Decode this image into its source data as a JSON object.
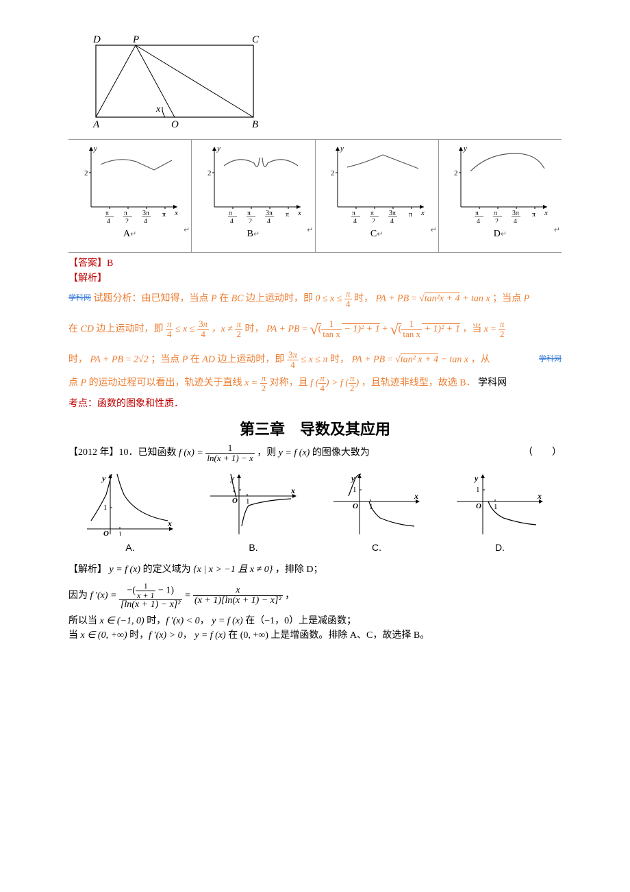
{
  "rect_fig": {
    "labels": {
      "D": "D",
      "P": "P",
      "C": "C",
      "A": "A",
      "O": "O",
      "B": "B",
      "x": "x"
    }
  },
  "top_charts": {
    "xticks": [
      "π/4",
      "π/2",
      "3π/4",
      "π"
    ],
    "ytick": "2",
    "y_label": "y",
    "x_label": "x",
    "items": [
      {
        "label": "A",
        "paths": [
          "M 14 20 Q 40 8 66 16 L 92 28 L 118 14"
        ]
      },
      {
        "label": "B",
        "paths": [
          "M 14 22 Q 36 6 58 18 Q 64 32 66 10",
          "M 70 10 Q 72 32 78 18 Q 100 6 122 22"
        ]
      },
      {
        "label": "C",
        "paths": [
          "M 14 24 Q 40 18 66 6 L 118 26"
        ]
      },
      {
        "label": "D",
        "paths": [
          "M 14 30 Q 40 4 80 4 Q 110 4 122 26"
        ]
      }
    ]
  },
  "answer_block": {
    "answer_label": "【答案】",
    "answer_value": "B",
    "analysis_label": "【解析】",
    "line1_prefix": "试题分析：由已知得，当点 ",
    "line1_mid": " 在 ",
    "line1_seg": "BC",
    "line1_after": " 边上运动时，即 ",
    "line1_cond": "0 ≤ x ≤ ",
    "line1_end": " 时，",
    "expr_papb": "PA + PB",
    "expr_eq1_a": "tan²x + 4",
    "expr_eq1_b": " + tan x",
    "line1_tail": "；当点 ",
    "line2_prefix": "在 ",
    "line2_seg": "CD",
    "line2_after": " 边上运动时，即 ",
    "line2_mid": " ≤ x ≤ ",
    "line2_ne": "，x ≠ ",
    "expr_eq2_inside1_a": "1",
    "expr_eq2_inside1_b": "tan x",
    "expr_eq2_inside1_tail": " − 1)² + 1",
    "expr_eq2_inside2_tail": " + 1)² + 1",
    "line2_tail1": "，当 ",
    "line3_prefix": "时，",
    "expr_eq3": "2√2",
    "line3_mid": "；当点 ",
    "line3_seg": "AD",
    "line3_after": " 边上运动时，即 ",
    "line3_end": "时，",
    "expr_eq4_a": "tan² x + 4",
    "expr_eq4_b": " − tan x",
    "line3_tail": "，从",
    "line4_a": "点 ",
    "line4_b": " 的运动过程可以看出，轨迹关于直线 ",
    "line4_sym": "x = ",
    "line4_c": " 对称，且 ",
    "line4_cmp": " > ",
    "line4_d": "，且轨迹非线型，故选 B．",
    "line4_e": "学科网",
    "kaodian": "考点：函数的图象和性质．"
  },
  "chapter": {
    "title": "第三章　导数及其应用"
  },
  "q10": {
    "year": "【2012 年】",
    "num": "10．",
    "text_a": "已知函数 ",
    "fx": "f (x) = ",
    "frac_num": "1",
    "frac_den": "ln(x + 1) − x",
    "text_b": "，则 ",
    "yfx": "y = f (x)",
    "text_c": " 的图像大致为",
    "paren": "（　　）"
  },
  "opt_graphs": {
    "items": [
      {
        "label": "A.",
        "paths": [
          "M 8 70 Q 20 52 30 32 Q 34 18 38 2",
          "M 46 2 Q 50 18 56 32 Q 74 62 120 70"
        ],
        "one_x": 48,
        "one_y_x": 42,
        "one_y_y": 54,
        "o_x": 36,
        "o_y": 82
      },
      {
        "label": "B.",
        "paths": [
          "M 32 2 Q 36 22 40 36",
          "M 48 78 Q 52 56 58 48 Q 82 40 120 38"
        ],
        "one_x": 54,
        "one_y_x": 40,
        "one_y_y": 28,
        "o_x": 44,
        "o_y": 34
      },
      {
        "label": "C.",
        "paths": [
          "M 24 34 Q 30 18 34 8 Q 38 2 42 2",
          "M 54 42 Q 58 56 70 66 Q 94 76 120 78"
        ],
        "one_x": 54,
        "one_y_x": 40,
        "one_y_y": 28,
        "o_x": 40,
        "o_y": 42
      },
      {
        "label": "D.",
        "paths": [
          "M 48 42 Q 54 58 70 66 Q 94 74 118 76"
        ],
        "one_x": 56,
        "one_y_x": 42,
        "one_y_y": 28,
        "o_x": 40,
        "o_y": 42
      }
    ]
  },
  "solution": {
    "label": "【解析】",
    "s1_a": "y = f (x)",
    "s1_b": " 的定义域为 ",
    "s1_set": "{x | x > −1 且 x ≠ 0}",
    "s1_c": "，排除 D；",
    "fprime": "f ′(x) = ",
    "d_frac1_num_a": "−(",
    "d_frac1_num_inner_num": "1",
    "d_frac1_num_inner_den": "x + 1",
    "d_frac1_num_b": " − 1)",
    "d_frac1_den": "[ln(x + 1) − x]²",
    "d_eq": " = ",
    "d_frac2_num": "x",
    "d_frac2_den": "(x + 1)[ln(x + 1) − x]²",
    "because": "因为 ",
    "comma": "，",
    "s2_a": "所以当 ",
    "s2_b": "x ∈ (−1, 0)",
    "s2_c": " 时，",
    "s2_d": "f ′(x) < 0",
    "s2_e": "y = f (x)",
    "s2_f": " 在（−1，0）上是减函数；",
    "s3_a": "当 ",
    "s3_b": "x ∈ (0, +∞)",
    "s3_c": " 时，",
    "s3_d": "f ′(x) > 0",
    "s3_e": "y = f (x)",
    "s3_f": " 在 (0, +∞) 上是增函数。排除 A、C，故选择 B。"
  }
}
